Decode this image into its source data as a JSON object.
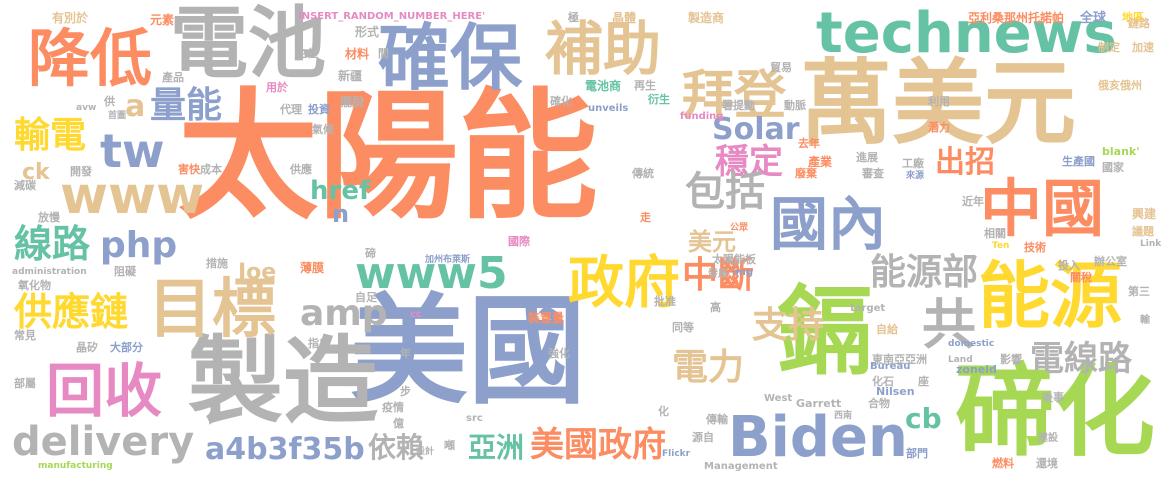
{
  "words": [
    {
      "text": "太陽能",
      "color": "#fc8d62"
    },
    {
      "text": "美國",
      "color": "#8da0cb"
    },
    {
      "text": "萬美元",
      "color": "#e5c494"
    },
    {
      "text": "製造",
      "color": "#b3b3b3"
    },
    {
      "text": "鎘",
      "color": "#a6d854"
    },
    {
      "text": "碲化",
      "color": "#a6d854"
    },
    {
      "text": "電池",
      "color": "#b3b3b3"
    },
    {
      "text": "降低",
      "color": "#fc8d62"
    },
    {
      "text": "確保",
      "color": "#8da0cb"
    },
    {
      "text": "補助",
      "color": "#e5c494"
    },
    {
      "text": "technews",
      "color": "#66c2a5"
    },
    {
      "text": "拜登",
      "color": "#e5c494"
    },
    {
      "text": "國內",
      "color": "#8da0cb"
    },
    {
      "text": "中國",
      "color": "#fc8d62"
    },
    {
      "text": "目標",
      "color": "#e5c494"
    },
    {
      "text": "能源",
      "color": "#ffd92f"
    },
    {
      "text": "www",
      "color": "#e5c494"
    },
    {
      "text": "www5",
      "color": "#66c2a5"
    },
    {
      "text": "Biden",
      "color": "#8da0cb"
    },
    {
      "text": "政府",
      "color": "#ffd92f"
    },
    {
      "text": "回收",
      "color": "#e78ac3"
    },
    {
      "text": "共",
      "color": "#b3b3b3"
    },
    {
      "text": "delivery",
      "color": "#b3b3b3"
    },
    {
      "text": "tw",
      "color": "#8da0cb"
    },
    {
      "text": "量能",
      "color": "#8da0cb"
    },
    {
      "text": "Solar",
      "color": "#8da0cb"
    },
    {
      "text": "穩定",
      "color": "#e78ac3"
    },
    {
      "text": "包括",
      "color": "#b3b3b3"
    },
    {
      "text": "php",
      "color": "#8da0cb"
    },
    {
      "text": "amp",
      "color": "#b3b3b3"
    },
    {
      "text": "線路",
      "color": "#66c2a5"
    },
    {
      "text": "供應鏈",
      "color": "#ffd92f"
    },
    {
      "text": "輸電",
      "color": "#ffd92f"
    },
    {
      "text": "中斷",
      "color": "#fc8d62"
    },
    {
      "text": "能源部",
      "color": "#b3b3b3"
    },
    {
      "text": "電線路",
      "color": "#b3b3b3"
    },
    {
      "text": "支持",
      "color": "#e5c494"
    },
    {
      "text": "電力",
      "color": "#e5c494"
    },
    {
      "text": "美國政府",
      "color": "#fc8d62"
    },
    {
      "text": "依賴",
      "color": "#b3b3b3"
    },
    {
      "text": "亞洲",
      "color": "#66c2a5"
    },
    {
      "text": "a4b3f35b",
      "color": "#8da0cb"
    },
    {
      "text": "href",
      "color": "#66c2a5"
    },
    {
      "text": "出招",
      "color": "#fc8d62"
    },
    {
      "text": "美元",
      "color": "#e5c494"
    },
    {
      "text": "cb",
      "color": "#66c2a5"
    },
    {
      "text": "ck",
      "color": "#e5c494"
    },
    {
      "text": "Joe",
      "color": "#e5c494"
    },
    {
      "text": "n",
      "color": "#8da0cb"
    },
    {
      "text": "a",
      "color": "#e5c494"
    },
    {
      "text": "INSERT_RANDOM_NUMBER_HERE'",
      "color": "#e78ac3"
    },
    {
      "text": "有別於",
      "color": "#e5c494"
    },
    {
      "text": "元素",
      "color": "#fc8d62"
    },
    {
      "text": "晶體",
      "color": "#e5c494"
    },
    {
      "text": "製造商",
      "color": "#e5c494"
    },
    {
      "text": "亞利桑那州托諾帕",
      "color": "#fc8d62"
    },
    {
      "text": "全球",
      "color": "#8da0cb"
    },
    {
      "text": "地區",
      "color": "#ffd92f"
    },
    {
      "text": "制定",
      "color": "#e5c494"
    },
    {
      "text": "加速",
      "color": "#e5c494"
    },
    {
      "text": "鏈路",
      "color": "#e5c494"
    },
    {
      "text": "俄亥俄州",
      "color": "#e5c494"
    },
    {
      "text": "貿易",
      "color": "#b3b3b3"
    },
    {
      "text": "潛力",
      "color": "#fc8d62"
    },
    {
      "text": "利用",
      "color": "#b3b3b3"
    },
    {
      "text": "形式",
      "color": "#b3b3b3"
    },
    {
      "text": "材料",
      "color": "#fc8d62"
    },
    {
      "text": "新疆",
      "color": "#b3b3b3"
    },
    {
      "text": "產品",
      "color": "#b3b3b3"
    },
    {
      "text": "用於",
      "color": "#e78ac3"
    },
    {
      "text": "主任",
      "color": "#b3b3b3"
    },
    {
      "text": "擺脫",
      "color": "#b3b3b3"
    },
    {
      "text": "代理",
      "color": "#b3b3b3"
    },
    {
      "text": "投資",
      "color": "#8da0cb"
    },
    {
      "text": "氣候",
      "color": "#b3b3b3"
    },
    {
      "text": "電池商",
      "color": "#66c2a5"
    },
    {
      "text": "再生",
      "color": "#b3b3b3"
    },
    {
      "text": "衍生",
      "color": "#66c2a5"
    },
    {
      "text": "署提勳",
      "color": "#b3b3b3"
    },
    {
      "text": "動脈",
      "color": "#b3b3b3"
    },
    {
      "text": "unveils",
      "color": "#8da0cb"
    },
    {
      "text": "funding",
      "color": "#e78ac3"
    },
    {
      "text": "去年",
      "color": "#fc8d62"
    },
    {
      "text": "產業",
      "color": "#fc8d62"
    },
    {
      "text": "進展",
      "color": "#b3b3b3"
    },
    {
      "text": "工廠",
      "color": "#b3b3b3"
    },
    {
      "text": "生產國",
      "color": "#8da0cb"
    },
    {
      "text": "國家",
      "color": "#b3b3b3"
    },
    {
      "text": "blank'",
      "color": "#a6d854"
    },
    {
      "text": "廢棄",
      "color": "#fc8d62"
    },
    {
      "text": "審查",
      "color": "#b3b3b3"
    },
    {
      "text": "來源",
      "color": "#8da0cb"
    },
    {
      "text": "成本",
      "color": "#b3b3b3"
    },
    {
      "text": "供應",
      "color": "#b3b3b3"
    },
    {
      "text": "開發",
      "color": "#b3b3b3"
    },
    {
      "text": "減碳",
      "color": "#b3b3b3"
    },
    {
      "text": "放慢",
      "color": "#b3b3b3"
    },
    {
      "text": "傳統",
      "color": "#b3b3b3"
    },
    {
      "text": "走",
      "color": "#fc8d62"
    },
    {
      "text": "公眾",
      "color": "#fc8d62"
    },
    {
      "text": "近年",
      "color": "#b3b3b3"
    },
    {
      "text": "興建",
      "color": "#e5c494"
    },
    {
      "text": "議題",
      "color": "#e5c494"
    },
    {
      "text": "Link",
      "color": "#b3b3b3"
    },
    {
      "text": "administration",
      "color": "#b3b3b3"
    },
    {
      "text": "阻礙",
      "color": "#b3b3b3"
    },
    {
      "text": "國際",
      "color": "#e78ac3"
    },
    {
      "text": "太陽能板",
      "color": "#b3b3b3"
    },
    {
      "text": "發展",
      "color": "#b3b3b3"
    },
    {
      "text": "img",
      "color": "#8da0cb"
    },
    {
      "text": "技術",
      "color": "#fc8d62"
    },
    {
      "text": "投入",
      "color": "#b3b3b3"
    },
    {
      "text": "關稅",
      "color": "#fc8d62"
    },
    {
      "text": "辦公室",
      "color": "#b3b3b3"
    },
    {
      "text": "相關",
      "color": "#b3b3b3"
    },
    {
      "text": "Ten",
      "color": "#ffd92f"
    },
    {
      "text": "第三",
      "color": "#b3b3b3"
    },
    {
      "text": "措施",
      "color": "#b3b3b3"
    },
    {
      "text": "薄膜",
      "color": "#fc8d62"
    },
    {
      "text": "碲",
      "color": "#b3b3b3"
    },
    {
      "text": "加州布萊斯",
      "color": "#8da0cb"
    },
    {
      "text": "氧化物",
      "color": "#b3b3b3"
    },
    {
      "text": "自足",
      "color": "#b3b3b3"
    },
    {
      "text": "批准",
      "color": "#b3b3b3"
    },
    {
      "text": "高",
      "color": "#b3b3b3"
    },
    {
      "text": "target",
      "color": "#b3b3b3"
    },
    {
      "text": "自給",
      "color": "#e5c494"
    },
    {
      "text": "cc",
      "color": "#e78ac3"
    },
    {
      "text": "裝置量",
      "color": "#fc8d62"
    },
    {
      "text": "同等",
      "color": "#b3b3b3"
    },
    {
      "text": "domestic",
      "color": "#8da0cb"
    },
    {
      "text": "常見",
      "color": "#b3b3b3"
    },
    {
      "text": "晶矽",
      "color": "#b3b3b3"
    },
    {
      "text": "大部分",
      "color": "#8da0cb"
    },
    {
      "text": "指出",
      "color": "#b3b3b3"
    },
    {
      "text": "東南亞亞洲",
      "color": "#b3b3b3"
    },
    {
      "text": "影響",
      "color": "#b3b3b3"
    },
    {
      "text": "Land",
      "color": "#b3b3b3"
    },
    {
      "text": "zoneid",
      "color": "#8da0cb"
    },
    {
      "text": "部屬",
      "color": "#b3b3b3"
    },
    {
      "text": "年",
      "color": "#b3b3b3"
    },
    {
      "text": "強化",
      "color": "#b3b3b3"
    },
    {
      "text": "化石",
      "color": "#b3b3b3"
    },
    {
      "text": "座",
      "color": "#b3b3b3"
    },
    {
      "text": "Bureau",
      "color": "#8da0cb"
    },
    {
      "text": "步",
      "color": "#b3b3b3"
    },
    {
      "text": "疫情",
      "color": "#b3b3b3"
    },
    {
      "text": "億",
      "color": "#b3b3b3"
    },
    {
      "text": "West",
      "color": "#b3b3b3"
    },
    {
      "text": "Garrett",
      "color": "#b3b3b3"
    },
    {
      "text": "合物",
      "color": "#b3b3b3"
    },
    {
      "text": "Nilsen",
      "color": "#8da0cb"
    },
    {
      "text": "後事",
      "color": "#b3b3b3"
    },
    {
      "text": "src",
      "color": "#b3b3b3"
    },
    {
      "text": "化",
      "color": "#b3b3b3"
    },
    {
      "text": "西南",
      "color": "#b3b3b3"
    },
    {
      "text": "傳輸",
      "color": "#b3b3b3"
    },
    {
      "text": "源自",
      "color": "#b3b3b3"
    },
    {
      "text": "建設",
      "color": "#b3b3b3"
    },
    {
      "text": "manufacturing",
      "color": "#a6d854"
    },
    {
      "text": "設計",
      "color": "#b3b3b3"
    },
    {
      "text": "噸",
      "color": "#b3b3b3"
    },
    {
      "text": "Flickr",
      "color": "#8da0cb"
    },
    {
      "text": "Management",
      "color": "#b3b3b3"
    },
    {
      "text": "部門",
      "color": "#8da0cb"
    },
    {
      "text": "燃料",
      "color": "#fc8d62"
    },
    {
      "text": "還境",
      "color": "#b3b3b3"
    },
    {
      "text": "輸",
      "color": "#b3b3b3"
    },
    {
      "text": "極",
      "color": "#b3b3b3"
    },
    {
      "text": "間",
      "color": "#b3b3b3"
    },
    {
      "text": "供",
      "color": "#b3b3b3"
    },
    {
      "text": "avw",
      "color": "#b3b3b3"
    },
    {
      "text": "首圖",
      "color": "#b3b3b3"
    },
    {
      "text": "確化",
      "color": "#b3b3b3"
    },
    {
      "text": "害快",
      "color": "#fc8d62"
    }
  ]
}
